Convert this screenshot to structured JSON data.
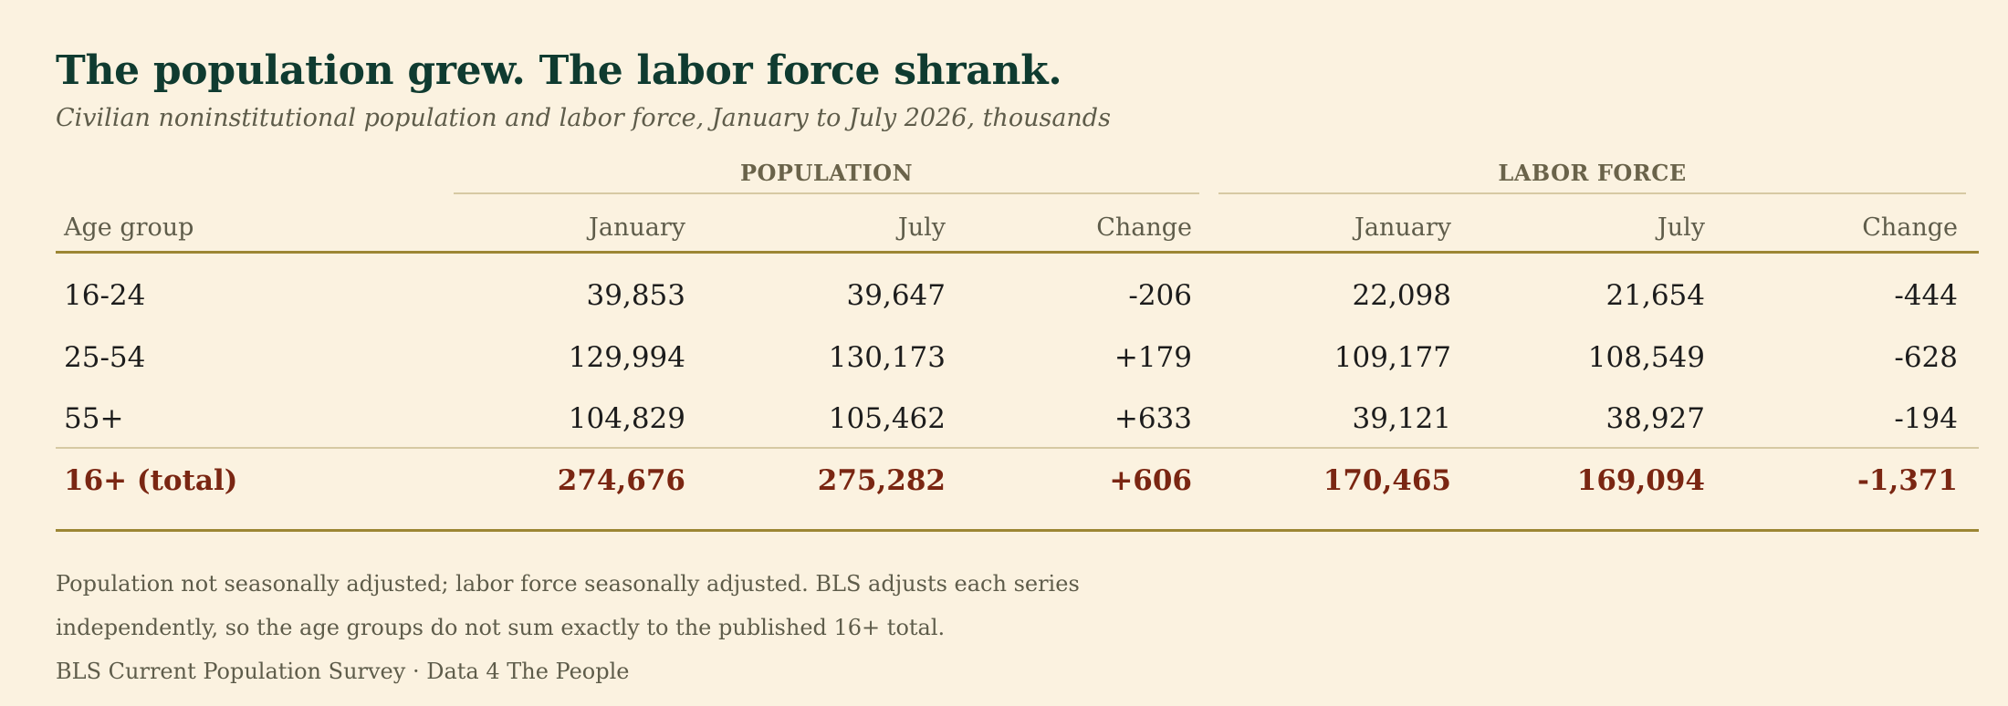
{
  "title": "The population grew. The labor force shrank.",
  "subtitle": "Civilian noninstitutional population and labor force, January to July 2026, thousands",
  "chart_data": {
    "type": "table",
    "column_groups": [
      {
        "label": "POPULATION",
        "columns": [
          "January",
          "July",
          "Change"
        ]
      },
      {
        "label": "LABOR FORCE",
        "columns": [
          "January",
          "July",
          "Change"
        ]
      }
    ],
    "columns": [
      "Age group",
      "January",
      "July",
      "Change",
      "January",
      "July",
      "Change"
    ],
    "rows": [
      {
        "label": "16-24",
        "cells": [
          "39,853",
          "39,647",
          "-206",
          "22,098",
          "21,654",
          "-444"
        ]
      },
      {
        "label": "25-54",
        "cells": [
          "129,994",
          "130,173",
          "+179",
          "109,177",
          "108,549",
          "-628"
        ]
      },
      {
        "label": "55+",
        "cells": [
          "104,829",
          "105,462",
          "+633",
          "39,121",
          "38,927",
          "-194"
        ]
      }
    ],
    "total": {
      "label": "16+ (total)",
      "cells": [
        "274,676",
        "275,282",
        "+606",
        "170,465",
        "169,094",
        "-1,371"
      ]
    }
  },
  "notes": [
    "Population not seasonally adjusted; labor force seasonally adjusted. BLS adjusts each series",
    "independently, so the age groups do not sum exactly to the published 16+ total."
  ],
  "source": "BLS Current Population Survey · Data 4 The People",
  "colors": {
    "background": "#fbf2e0",
    "title": "#0f3b30",
    "total_row": "#7a2612",
    "rule": "#9c8634"
  }
}
